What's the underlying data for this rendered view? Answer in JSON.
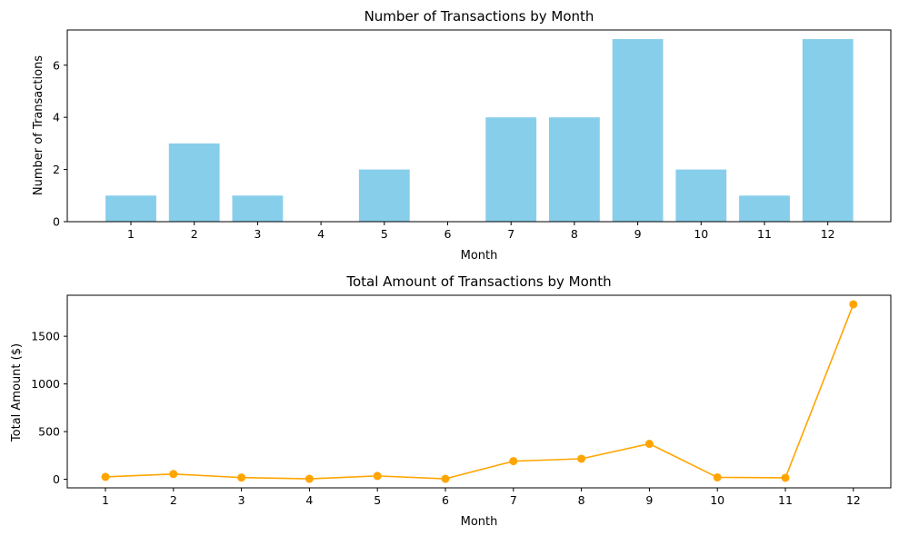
{
  "chart_data": [
    {
      "type": "bar",
      "title": "Number of Transactions by Month",
      "xlabel": "Month",
      "ylabel": "Number of Transactions",
      "categories": [
        "1",
        "2",
        "3",
        "4",
        "5",
        "6",
        "7",
        "8",
        "9",
        "10",
        "11",
        "12"
      ],
      "values": [
        1,
        3,
        1,
        0,
        2,
        0,
        4,
        4,
        7,
        2,
        1,
        7
      ],
      "ylim": [
        0,
        7.35
      ],
      "yticks": [
        0,
        2,
        4,
        6
      ],
      "color": "#87ceeb",
      "grid": false
    },
    {
      "type": "line",
      "title": "Total Amount of Transactions by Month",
      "xlabel": "Month",
      "ylabel": "Total Amount ($)",
      "x": [
        1,
        2,
        3,
        4,
        5,
        6,
        7,
        8,
        9,
        10,
        11,
        12
      ],
      "xticks": [
        "1",
        "2",
        "3",
        "4",
        "5",
        "6",
        "7",
        "8",
        "9",
        "10",
        "11",
        "12"
      ],
      "values": [
        25,
        55,
        18,
        5,
        35,
        5,
        190,
        215,
        372,
        20,
        15,
        1835
      ],
      "ylim": [
        -90,
        1930
      ],
      "yticks": [
        0,
        500,
        1000,
        1500
      ],
      "color": "#ffa500",
      "marker": "circle",
      "grid": false
    }
  ]
}
